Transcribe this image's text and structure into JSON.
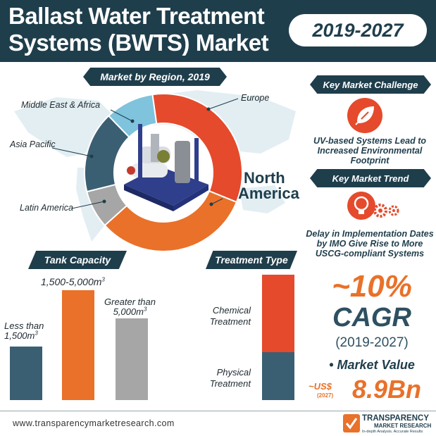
{
  "header": {
    "title_line1": "Ballast Water Treatment",
    "title_line2": "Systems (BWTS) Market",
    "years": "2019-2027"
  },
  "region": {
    "heading": "Market by Region, 2019",
    "segments": [
      {
        "name": "Europe",
        "color": "#e54a2c"
      },
      {
        "name": "North America",
        "color": "#e9712a"
      },
      {
        "name": "Latin America",
        "color": "#a6a6a6"
      },
      {
        "name": "Asia Pacific",
        "color": "#3a5f72"
      },
      {
        "name": "Middle East & Africa",
        "color": "#7fc3dd"
      }
    ],
    "label_north_line1": "North",
    "label_north_line2": "America"
  },
  "challenge": {
    "heading": "Key Market Challenge",
    "text": "UV-based Systems Lead to Increased Environmental Footprint",
    "icon": "leaf-icon"
  },
  "trend": {
    "heading": "Key Market Trend",
    "text": "Delay in Implementation Dates by IMO Give Rise to More USCG-compliant Systems",
    "icon": "bulb-gear-icon"
  },
  "tank": {
    "heading": "Tank Capacity",
    "items": [
      {
        "label": "Less than 1,500m",
        "color": "#3a5f72"
      },
      {
        "label": "1,500-5,000m",
        "color": "#e9712a"
      },
      {
        "label": "Greater than 5,000m",
        "color": "#a6a6a6"
      }
    ],
    "less_than_line1": "Less than",
    "less_than_line2": "1,500m",
    "mid": "1,500-5,000m",
    "greater_line1": "Greater than",
    "greater_line2": "5,000m",
    "superscript": "3"
  },
  "treatment": {
    "heading": "Treatment Type",
    "chem_line1": "Chemical",
    "chem_line2": "Treatment",
    "phys_line1": "Physical",
    "phys_line2": "Treatment"
  },
  "cagr": {
    "value": "~10%",
    "label": "CAGR",
    "years": "(2019-2027)"
  },
  "market_value": {
    "label": "• Market Value",
    "prefix": "~US$",
    "year": "(2027)",
    "value": "8.9Bn"
  },
  "footer": {
    "url": "www.transparencymarketresearch.com",
    "logo_line1": "TRANSPARENCY",
    "logo_line2": "MARKET RESEARCH",
    "logo_tagline": "In-depth Analysis. Accurate Results"
  }
}
